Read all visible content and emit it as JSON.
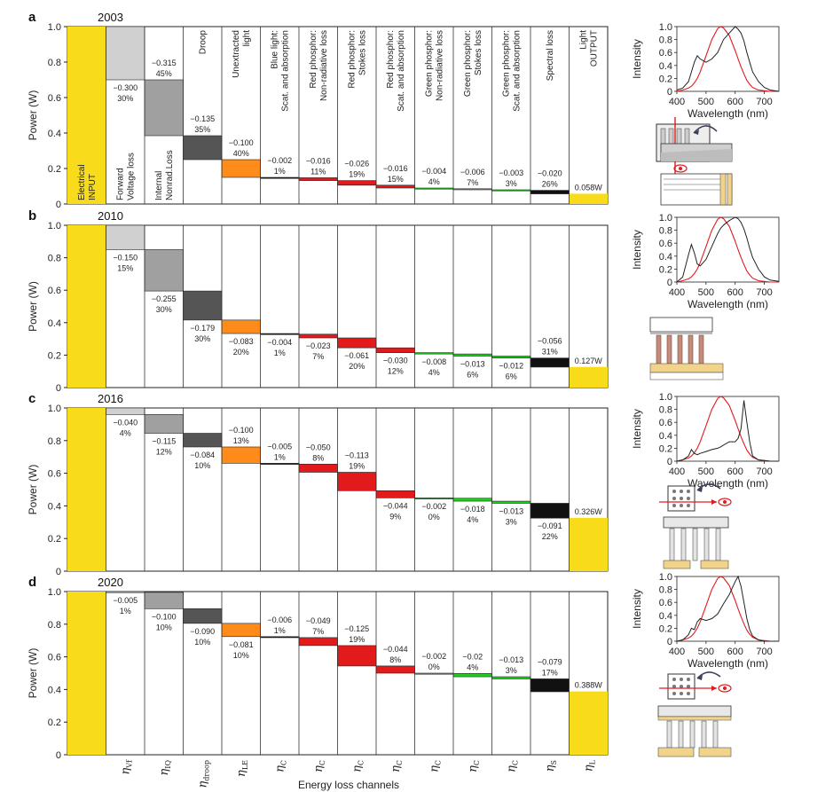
{
  "chart_data": {
    "type": "bar",
    "subtype": "waterfall",
    "ylabel": "Power (W)",
    "xlabel": "Energy loss channels",
    "ylim": [
      0,
      1.0
    ],
    "yticks": [
      "0",
      "0.2",
      "0.4",
      "0.6",
      "0.8",
      "1.0"
    ],
    "channel_symbols": [
      {
        "sym": "η",
        "sub": "Vf"
      },
      {
        "sym": "η",
        "sub": "IQ"
      },
      {
        "sym": "η",
        "sub": "droop"
      },
      {
        "sym": "η",
        "sub": "LE"
      },
      {
        "sym": "η",
        "sub": "C"
      },
      {
        "sym": "η",
        "sub": "C"
      },
      {
        "sym": "η",
        "sub": "C"
      },
      {
        "sym": "η",
        "sub": "C"
      },
      {
        "sym": "η",
        "sub": "C"
      },
      {
        "sym": "η",
        "sub": "C"
      },
      {
        "sym": "η",
        "sub": "C"
      },
      {
        "sym": "η",
        "sub": "S"
      },
      {
        "sym": "η",
        "sub": "L"
      }
    ],
    "channel_labels_2003": [
      {
        "lines": [
          "Electrical",
          "INPUT"
        ],
        "color": "#222222"
      },
      {
        "lines": [
          "Forward",
          "Voltage loss"
        ],
        "color": "#222222"
      },
      {
        "lines": [
          "Internal",
          "Nonrad.Loss"
        ],
        "color": "#222222"
      },
      {
        "lines": [
          "Droop"
        ],
        "color": "#222222"
      },
      {
        "lines": [
          "Unextracted",
          "light"
        ],
        "color": "#222222"
      },
      {
        "lines": [
          "Blue light:",
          "Scat. and absorption"
        ],
        "color": "#1a1acc"
      },
      {
        "lines": [
          "Red phosphor:",
          "Non-radiative loss"
        ],
        "color": "#e31a1c"
      },
      {
        "lines": [
          "Red phosphor:",
          "Stokes loss"
        ],
        "color": "#e31a1c"
      },
      {
        "lines": [
          "Red phosphor:",
          "Scat. and absorption"
        ],
        "color": "#e31a1c"
      },
      {
        "lines": [
          "Green phosphor:",
          "Non-radiative loss"
        ],
        "color": "#1a9a8a"
      },
      {
        "lines": [
          "Green phosphor:",
          "Stokes loss"
        ],
        "color": "#1a9a8a"
      },
      {
        "lines": [
          "Green phosphor:",
          "Scat. and absorption"
        ],
        "color": "#1a9a8a"
      },
      {
        "lines": [
          "Spectral loss"
        ],
        "color": "#222222"
      },
      {
        "lines": [
          "Light",
          "OUTPUT"
        ],
        "color": "#222222"
      }
    ],
    "bar_colors": [
      "#d0d0d0",
      "#a0a0a0",
      "#555555",
      "#ff8c1a",
      "#111111",
      "#e31a1c",
      "#e31a1c",
      "#e31a1c",
      "#22cc22",
      "#22cc22",
      "#22cc22",
      "#111111"
    ],
    "input_color": "#f8dc1b",
    "output_color": "#f8dc1b",
    "panels": [
      {
        "letter": "a",
        "year": "2003",
        "input": 1.0,
        "losses": [
          {
            "top": 1.0,
            "bottom": 0.7,
            "value": "−0.300",
            "pct": "30%",
            "pos": "below"
          },
          {
            "top": 0.7,
            "bottom": 0.385,
            "value": "−0.315",
            "pct": "45%",
            "pos": "above"
          },
          {
            "top": 0.385,
            "bottom": 0.25,
            "value": "−0.135",
            "pct": "35%",
            "pos": "above"
          },
          {
            "top": 0.25,
            "bottom": 0.15,
            "value": "−0.100",
            "pct": "40%",
            "pos": "above"
          },
          {
            "top": 0.15,
            "bottom": 0.148,
            "value": "−0.002",
            "pct": "1%",
            "pos": "above"
          },
          {
            "top": 0.148,
            "bottom": 0.132,
            "value": "−0.016",
            "pct": "11%",
            "pos": "above"
          },
          {
            "top": 0.132,
            "bottom": 0.106,
            "value": "−0.026",
            "pct": "19%",
            "pos": "above"
          },
          {
            "top": 0.106,
            "bottom": 0.09,
            "value": "−0.016",
            "pct": "15%",
            "pos": "above"
          },
          {
            "top": 0.09,
            "bottom": 0.086,
            "value": "−0.004",
            "pct": "4%",
            "pos": "above"
          },
          {
            "top": 0.086,
            "bottom": 0.08,
            "value": "−0.006",
            "pct": "7%",
            "pos": "above"
          },
          {
            "top": 0.08,
            "bottom": 0.077,
            "value": "−0.003",
            "pct": "3%",
            "pos": "above"
          },
          {
            "top": 0.077,
            "bottom": 0.057,
            "value": "−0.020",
            "pct": "26%",
            "pos": "above"
          }
        ],
        "output": 0.058,
        "output_label": "0.058W"
      },
      {
        "letter": "b",
        "year": "2010",
        "input": 1.0,
        "losses": [
          {
            "top": 1.0,
            "bottom": 0.85,
            "value": "−0.150",
            "pct": "15%",
            "pos": "below"
          },
          {
            "top": 0.85,
            "bottom": 0.595,
            "value": "−0.255",
            "pct": "30%",
            "pos": "below"
          },
          {
            "top": 0.595,
            "bottom": 0.416,
            "value": "−0.179",
            "pct": "30%",
            "pos": "below"
          },
          {
            "top": 0.416,
            "bottom": 0.333,
            "value": "−0.083",
            "pct": "20%",
            "pos": "below"
          },
          {
            "top": 0.333,
            "bottom": 0.329,
            "value": "−0.004",
            "pct": "1%",
            "pos": "below"
          },
          {
            "top": 0.329,
            "bottom": 0.306,
            "value": "−0.023",
            "pct": "7%",
            "pos": "below"
          },
          {
            "top": 0.306,
            "bottom": 0.245,
            "value": "−0.061",
            "pct": "20%",
            "pos": "below"
          },
          {
            "top": 0.245,
            "bottom": 0.215,
            "value": "−0.030",
            "pct": "12%",
            "pos": "below"
          },
          {
            "top": 0.215,
            "bottom": 0.207,
            "value": "−0.008",
            "pct": "4%",
            "pos": "below"
          },
          {
            "top": 0.207,
            "bottom": 0.194,
            "value": "−0.013",
            "pct": "6%",
            "pos": "below"
          },
          {
            "top": 0.194,
            "bottom": 0.182,
            "value": "−0.012",
            "pct": "6%",
            "pos": "below"
          },
          {
            "top": 0.182,
            "bottom": 0.126,
            "value": "−0.056",
            "pct": "31%",
            "pos": "above"
          }
        ],
        "output": 0.127,
        "output_label": "0.127W"
      },
      {
        "letter": "c",
        "year": "2016",
        "input": 1.0,
        "losses": [
          {
            "top": 1.0,
            "bottom": 0.96,
            "value": "−0.040",
            "pct": "4%",
            "pos": "below"
          },
          {
            "top": 0.96,
            "bottom": 0.845,
            "value": "−0.115",
            "pct": "12%",
            "pos": "below"
          },
          {
            "top": 0.845,
            "bottom": 0.761,
            "value": "−0.084",
            "pct": "10%",
            "pos": "below"
          },
          {
            "top": 0.761,
            "bottom": 0.661,
            "value": "−0.100",
            "pct": "13%",
            "pos": "above"
          },
          {
            "top": 0.661,
            "bottom": 0.656,
            "value": "−0.005",
            "pct": "1%",
            "pos": "above"
          },
          {
            "top": 0.656,
            "bottom": 0.606,
            "value": "−0.050",
            "pct": "8%",
            "pos": "above"
          },
          {
            "top": 0.606,
            "bottom": 0.493,
            "value": "−0.113",
            "pct": "19%",
            "pos": "above"
          },
          {
            "top": 0.493,
            "bottom": 0.449,
            "value": "−0.044",
            "pct": "9%",
            "pos": "below"
          },
          {
            "top": 0.449,
            "bottom": 0.447,
            "value": "−0.002",
            "pct": "0%",
            "pos": "below"
          },
          {
            "top": 0.447,
            "bottom": 0.429,
            "value": "−0.018",
            "pct": "4%",
            "pos": "below"
          },
          {
            "top": 0.429,
            "bottom": 0.416,
            "value": "−0.013",
            "pct": "3%",
            "pos": "below"
          },
          {
            "top": 0.416,
            "bottom": 0.325,
            "value": "−0.091",
            "pct": "22%",
            "pos": "below"
          }
        ],
        "output": 0.326,
        "output_label": "0.326W"
      },
      {
        "letter": "d",
        "year": "2020",
        "input": 1.0,
        "losses": [
          {
            "top": 1.0,
            "bottom": 0.995,
            "value": "−0.005",
            "pct": "1%",
            "pos": "below"
          },
          {
            "top": 0.995,
            "bottom": 0.895,
            "value": "−0.100",
            "pct": "10%",
            "pos": "below"
          },
          {
            "top": 0.895,
            "bottom": 0.805,
            "value": "−0.090",
            "pct": "10%",
            "pos": "below"
          },
          {
            "top": 0.805,
            "bottom": 0.724,
            "value": "−0.081",
            "pct": "10%",
            "pos": "below"
          },
          {
            "top": 0.724,
            "bottom": 0.718,
            "value": "−0.006",
            "pct": "1%",
            "pos": "above"
          },
          {
            "top": 0.718,
            "bottom": 0.669,
            "value": "−0.049",
            "pct": "7%",
            "pos": "above"
          },
          {
            "top": 0.669,
            "bottom": 0.544,
            "value": "−0.125",
            "pct": "19%",
            "pos": "above"
          },
          {
            "top": 0.544,
            "bottom": 0.5,
            "value": "−0.044",
            "pct": "8%",
            "pos": "above"
          },
          {
            "top": 0.5,
            "bottom": 0.498,
            "value": "−0.002",
            "pct": "0%",
            "pos": "above"
          },
          {
            "top": 0.498,
            "bottom": 0.478,
            "value": "−0.02",
            "pct": "4%",
            "pos": "above"
          },
          {
            "top": 0.478,
            "bottom": 0.465,
            "value": "−0.013",
            "pct": "3%",
            "pos": "above"
          },
          {
            "top": 0.465,
            "bottom": 0.386,
            "value": "−0.079",
            "pct": "17%",
            "pos": "above"
          }
        ],
        "output": 0.388,
        "output_label": "0.388W"
      }
    ],
    "spectra": {
      "type": "line",
      "xlabel": "Wavelength (nm)",
      "ylabel": "Intensity",
      "xlim": [
        400,
        750
      ],
      "ylim": [
        0,
        1.0
      ],
      "xticks": [
        "400",
        "500",
        "600",
        "700"
      ],
      "yticks": [
        "0",
        "0.2",
        "0.4",
        "0.6",
        "0.8",
        "1.0"
      ],
      "x": [
        400,
        420,
        440,
        450,
        460,
        470,
        480,
        500,
        520,
        540,
        550,
        560,
        580,
        600,
        610,
        620,
        630,
        640,
        650,
        660,
        680,
        700,
        720,
        750
      ],
      "reference_curve": {
        "name": "eye sensitivity",
        "color": "#e31a1c",
        "y": [
          0.0,
          0.02,
          0.05,
          0.08,
          0.13,
          0.2,
          0.3,
          0.55,
          0.8,
          0.97,
          1.0,
          0.98,
          0.86,
          0.63,
          0.5,
          0.38,
          0.27,
          0.17,
          0.11,
          0.06,
          0.02,
          0.01,
          0.0,
          0.0
        ]
      },
      "panels": [
        {
          "panel": "a",
          "y": [
            0.02,
            0.05,
            0.15,
            0.3,
            0.45,
            0.55,
            0.5,
            0.45,
            0.5,
            0.6,
            0.7,
            0.8,
            0.9,
            1.0,
            0.96,
            0.9,
            0.78,
            0.6,
            0.45,
            0.3,
            0.15,
            0.06,
            0.02,
            0.0
          ]
        },
        {
          "panel": "b",
          "y": [
            0.0,
            0.08,
            0.42,
            0.58,
            0.45,
            0.28,
            0.25,
            0.35,
            0.55,
            0.75,
            0.83,
            0.88,
            0.95,
            1.0,
            0.98,
            0.92,
            0.82,
            0.68,
            0.52,
            0.38,
            0.2,
            0.08,
            0.03,
            0.01
          ]
        },
        {
          "panel": "c",
          "y": [
            0.0,
            0.02,
            0.08,
            0.18,
            0.12,
            0.1,
            0.12,
            0.15,
            0.18,
            0.2,
            0.22,
            0.25,
            0.3,
            0.3,
            0.35,
            0.5,
            0.94,
            0.6,
            0.3,
            0.08,
            0.02,
            0.01,
            0.0,
            0.0
          ]
        },
        {
          "panel": "d",
          "y": [
            0.0,
            0.02,
            0.1,
            0.2,
            0.18,
            0.3,
            0.35,
            0.32,
            0.35,
            0.42,
            0.5,
            0.58,
            0.72,
            0.92,
            1.0,
            0.85,
            0.6,
            0.35,
            0.18,
            0.08,
            0.02,
            0.0,
            0.0,
            0.0
          ]
        }
      ]
    }
  }
}
